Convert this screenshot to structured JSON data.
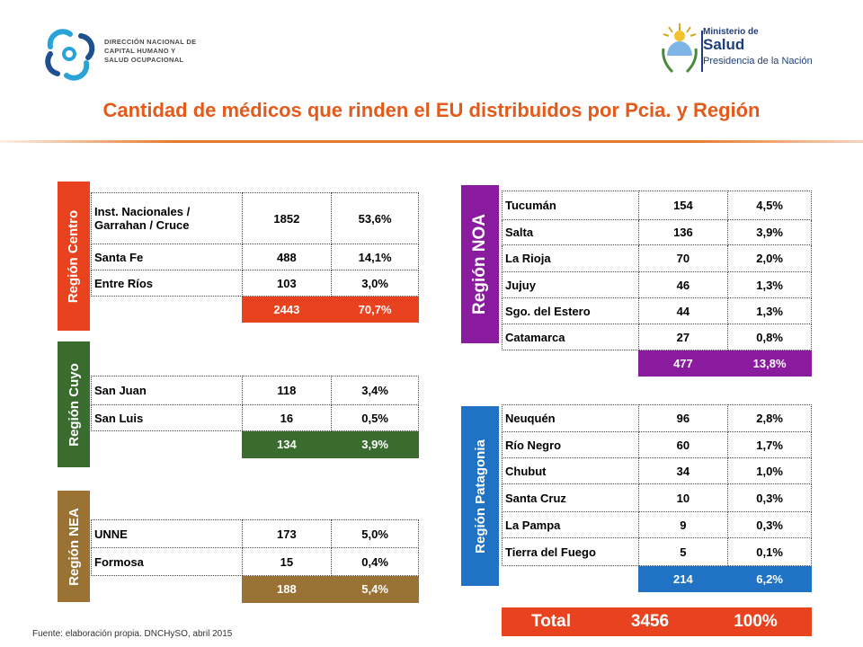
{
  "header": {
    "logo_left_lines": [
      "DIRECCIÓN NACIONAL DE",
      "CAPITAL HUMANO Y",
      "SALUD OCUPACIONAL"
    ],
    "logo_right": {
      "line1": "Ministerio de",
      "line2": "Salud",
      "line3": "Presidencia de la Nación"
    },
    "title": "Cantidad de médicos que rinden el EU distribuidos por Pcia. y Región"
  },
  "regions": {
    "centro": {
      "label": "Región Centro",
      "color": "#e8421f",
      "rows": [
        {
          "name": "Inst. Nacionales / Garrahan / Cruce",
          "count": "1852",
          "pct": "53,6%"
        },
        {
          "name": "Santa Fe",
          "count": "488",
          "pct": "14,1%"
        },
        {
          "name": "Entre Ríos",
          "count": "103",
          "pct": "3,0%"
        }
      ],
      "total": {
        "count": "2443",
        "pct": "70,7%"
      }
    },
    "cuyo": {
      "label": "Región Cuyo",
      "color": "#3a6b2f",
      "rows": [
        {
          "name": "San Juan",
          "count": "118",
          "pct": "3,4%"
        },
        {
          "name": "San Luis",
          "count": "16",
          "pct": "0,5%"
        }
      ],
      "total": {
        "count": "134",
        "pct": "3,9%"
      }
    },
    "nea": {
      "label": "Región NEA",
      "color": "#997234",
      "rows": [
        {
          "name": "UNNE",
          "count": "173",
          "pct": "5,0%"
        },
        {
          "name": "Formosa",
          "count": "15",
          "pct": "0,4%"
        }
      ],
      "total": {
        "count": "188",
        "pct": "5,4%"
      }
    },
    "noa": {
      "label": "Región NOA",
      "color": "#8a1b9e",
      "rows": [
        {
          "name": "Tucumán",
          "count": "154",
          "pct": "4,5%"
        },
        {
          "name": "Salta",
          "count": "136",
          "pct": "3,9%"
        },
        {
          "name": "La Rioja",
          "count": "70",
          "pct": "2,0%"
        },
        {
          "name": "Jujuy",
          "count": "46",
          "pct": "1,3%"
        },
        {
          "name": "Sgo. del Estero",
          "count": "44",
          "pct": "1,3%"
        },
        {
          "name": "Catamarca",
          "count": "27",
          "pct": "0,8%"
        }
      ],
      "total": {
        "count": "477",
        "pct": "13,8%"
      }
    },
    "patagonia": {
      "label": "Región Patagonia",
      "color": "#1f72c4",
      "rows": [
        {
          "name": "Neuquén",
          "count": "96",
          "pct": "2,8%"
        },
        {
          "name": "Río Negro",
          "count": "60",
          "pct": "1,7%"
        },
        {
          "name": "Chubut",
          "count": "34",
          "pct": "1,0%"
        },
        {
          "name": "Santa Cruz",
          "count": "10",
          "pct": "0,3%"
        },
        {
          "name": "La Pampa",
          "count": "9",
          "pct": "0,3%"
        },
        {
          "name": "Tierra del Fuego",
          "count": "5",
          "pct": "0,1%"
        }
      ],
      "total": {
        "count": "214",
        "pct": "6,2%"
      }
    }
  },
  "grand_total": {
    "label": "Total",
    "count": "3456",
    "pct": "100%",
    "color": "#e8421f"
  },
  "footer": {
    "source": "Fuente: elaboración propia. DNCHySO, abril 2015"
  }
}
